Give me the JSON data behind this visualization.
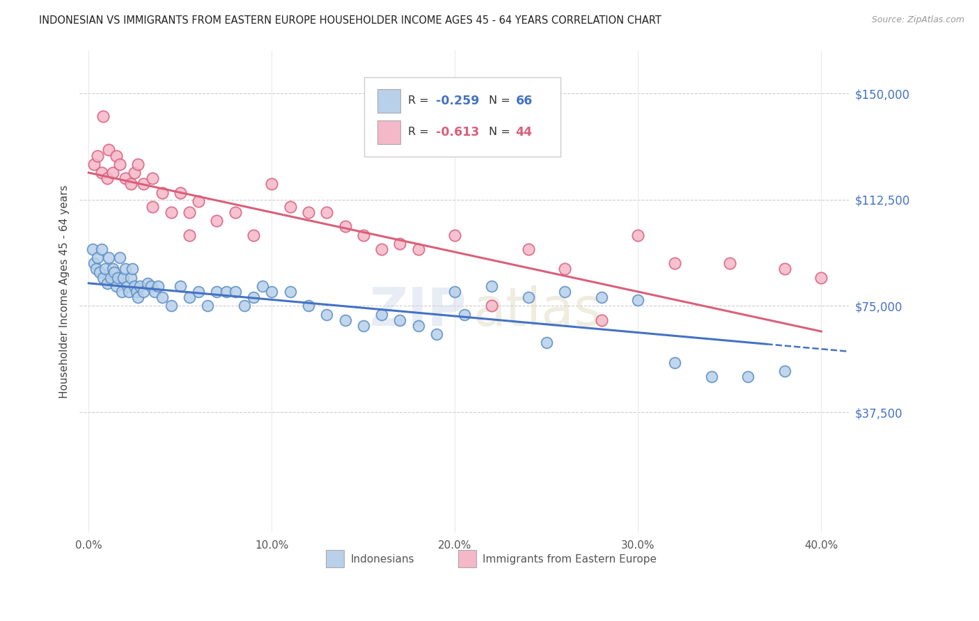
{
  "title": "INDONESIAN VS IMMIGRANTS FROM EASTERN EUROPE HOUSEHOLDER INCOME AGES 45 - 64 YEARS CORRELATION CHART",
  "source": "Source: ZipAtlas.com",
  "ylabel": "Householder Income Ages 45 - 64 years",
  "xtick_vals": [
    0.0,
    10.0,
    20.0,
    30.0,
    40.0
  ],
  "xtick_labels": [
    "0.0%",
    "10.0%",
    "20.0%",
    "30.0%",
    "40.0%"
  ],
  "ytick_vals": [
    37500,
    75000,
    112500,
    150000
  ],
  "ytick_labels": [
    "$37,500",
    "$75,000",
    "$112,500",
    "$150,000"
  ],
  "blue_color": "#b8d0ea",
  "blue_edge": "#5b8ec4",
  "pink_color": "#f5b8c8",
  "pink_edge": "#d96080",
  "blue_line": "#4472c4",
  "pink_line": "#d9607a",
  "r_blue": "-0.259",
  "n_blue": "66",
  "r_pink": "-0.613",
  "n_pink": "44",
  "legend_label1": "Indonesians",
  "legend_label2": "Immigrants from Eastern Europe",
  "blue_x": [
    0.2,
    0.3,
    0.4,
    0.5,
    0.6,
    0.7,
    0.8,
    0.9,
    1.0,
    1.1,
    1.2,
    1.3,
    1.4,
    1.5,
    1.6,
    1.7,
    1.8,
    1.9,
    2.0,
    2.1,
    2.2,
    2.3,
    2.4,
    2.5,
    2.6,
    2.7,
    2.8,
    3.0,
    3.2,
    3.4,
    3.6,
    3.8,
    4.0,
    4.5,
    5.0,
    5.5,
    6.0,
    6.5,
    7.0,
    7.5,
    8.0,
    8.5,
    9.0,
    9.5,
    10.0,
    11.0,
    12.0,
    13.0,
    14.0,
    15.0,
    16.0,
    17.0,
    18.0,
    19.0,
    20.0,
    22.0,
    24.0,
    26.0,
    28.0,
    30.0,
    32.0,
    34.0,
    36.0,
    38.0,
    20.5,
    25.0
  ],
  "blue_y": [
    95000,
    90000,
    88000,
    92000,
    87000,
    95000,
    85000,
    88000,
    83000,
    92000,
    85000,
    88000,
    87000,
    82000,
    85000,
    92000,
    80000,
    85000,
    88000,
    82000,
    80000,
    85000,
    88000,
    82000,
    80000,
    78000,
    82000,
    80000,
    83000,
    82000,
    80000,
    82000,
    78000,
    75000,
    82000,
    78000,
    80000,
    75000,
    80000,
    80000,
    80000,
    75000,
    78000,
    82000,
    80000,
    80000,
    75000,
    72000,
    70000,
    68000,
    72000,
    70000,
    68000,
    65000,
    80000,
    82000,
    78000,
    80000,
    78000,
    77000,
    55000,
    50000,
    50000,
    52000,
    72000,
    62000
  ],
  "pink_x": [
    0.3,
    0.5,
    0.7,
    0.8,
    1.0,
    1.1,
    1.3,
    1.5,
    1.7,
    2.0,
    2.3,
    2.5,
    2.7,
    3.0,
    3.5,
    4.0,
    4.5,
    5.0,
    5.5,
    6.0,
    7.0,
    8.0,
    9.0,
    10.0,
    11.0,
    12.0,
    13.0,
    14.0,
    15.0,
    16.0,
    17.0,
    18.0,
    20.0,
    22.0,
    24.0,
    26.0,
    28.0,
    30.0,
    32.0,
    35.0,
    38.0,
    40.0,
    5.5,
    3.5
  ],
  "pink_y": [
    125000,
    128000,
    122000,
    142000,
    120000,
    130000,
    122000,
    128000,
    125000,
    120000,
    118000,
    122000,
    125000,
    118000,
    120000,
    115000,
    108000,
    115000,
    108000,
    112000,
    105000,
    108000,
    100000,
    118000,
    110000,
    108000,
    108000,
    103000,
    100000,
    95000,
    97000,
    95000,
    100000,
    75000,
    95000,
    88000,
    70000,
    100000,
    90000,
    90000,
    88000,
    85000,
    100000,
    110000
  ]
}
